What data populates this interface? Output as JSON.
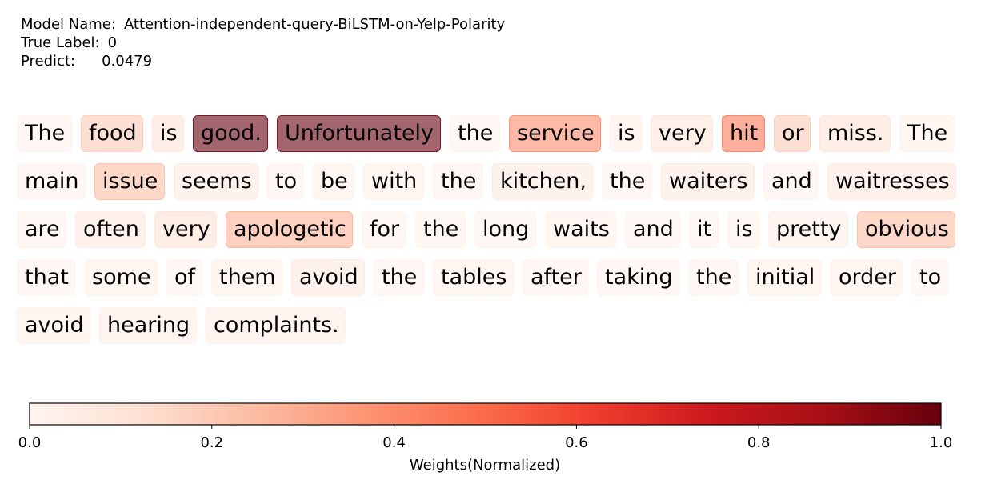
{
  "header": {
    "model_label": "Model Name:",
    "model_name": "Attention-independent-query-BiLSTM-on-Yelp-Polarity",
    "true_label_label": "True Label:",
    "true_label_value": "0",
    "predict_label": "Predict:",
    "predict_value": "0.0479"
  },
  "chart_data": {
    "type": "heatmap",
    "title": "",
    "colormap": "Reds",
    "colorbar": {
      "label": "Weights(Normalized)",
      "range": [
        0.0,
        1.0
      ],
      "ticks": [
        "0.0",
        "0.2",
        "0.4",
        "0.6",
        "0.8",
        "1.0"
      ]
    },
    "tokens": [
      {
        "text": "The",
        "weight": 0.02
      },
      {
        "text": "food",
        "weight": 0.2
      },
      {
        "text": "is",
        "weight": 0.11
      },
      {
        "text": "good.",
        "weight": 1.0
      },
      {
        "text": "Unfortunately",
        "weight": 1.0
      },
      {
        "text": "the",
        "weight": 0.02
      },
      {
        "text": "service",
        "weight": 0.4
      },
      {
        "text": "is",
        "weight": 0.05
      },
      {
        "text": "very",
        "weight": 0.1
      },
      {
        "text": "hit",
        "weight": 0.45
      },
      {
        "text": "or",
        "weight": 0.2
      },
      {
        "text": "miss.",
        "weight": 0.11
      },
      {
        "text": "The",
        "weight": 0.03
      },
      {
        "text": "main",
        "weight": 0.02
      },
      {
        "text": "issue",
        "weight": 0.24
      },
      {
        "text": "seems",
        "weight": 0.07
      },
      {
        "text": "to",
        "weight": 0.02
      },
      {
        "text": "be",
        "weight": 0.03
      },
      {
        "text": "with",
        "weight": 0.03
      },
      {
        "text": "the",
        "weight": 0.02
      },
      {
        "text": "kitchen,",
        "weight": 0.07
      },
      {
        "text": "the",
        "weight": 0.02
      },
      {
        "text": "waiters",
        "weight": 0.07
      },
      {
        "text": "and",
        "weight": 0.02
      },
      {
        "text": "waitresses",
        "weight": 0.08
      },
      {
        "text": "are",
        "weight": 0.02
      },
      {
        "text": "often",
        "weight": 0.08
      },
      {
        "text": "very",
        "weight": 0.12
      },
      {
        "text": "apologetic",
        "weight": 0.28
      },
      {
        "text": "for",
        "weight": 0.02
      },
      {
        "text": "the",
        "weight": 0.02
      },
      {
        "text": "long",
        "weight": 0.02
      },
      {
        "text": "waits",
        "weight": 0.03
      },
      {
        "text": "and",
        "weight": 0.02
      },
      {
        "text": "it",
        "weight": 0.02
      },
      {
        "text": "is",
        "weight": 0.02
      },
      {
        "text": "pretty",
        "weight": 0.04
      },
      {
        "text": "obvious",
        "weight": 0.24
      },
      {
        "text": "that",
        "weight": 0.02
      },
      {
        "text": "some",
        "weight": 0.03
      },
      {
        "text": "of",
        "weight": 0.02
      },
      {
        "text": "them",
        "weight": 0.03
      },
      {
        "text": "avoid",
        "weight": 0.07
      },
      {
        "text": "the",
        "weight": 0.02
      },
      {
        "text": "tables",
        "weight": 0.03
      },
      {
        "text": "after",
        "weight": 0.02
      },
      {
        "text": "taking",
        "weight": 0.02
      },
      {
        "text": "the",
        "weight": 0.02
      },
      {
        "text": "initial",
        "weight": 0.03
      },
      {
        "text": "order",
        "weight": 0.03
      },
      {
        "text": "to",
        "weight": 0.02
      },
      {
        "text": "avoid",
        "weight": 0.03
      },
      {
        "text": "hearing",
        "weight": 0.04
      },
      {
        "text": "complaints.",
        "weight": 0.05
      }
    ]
  }
}
